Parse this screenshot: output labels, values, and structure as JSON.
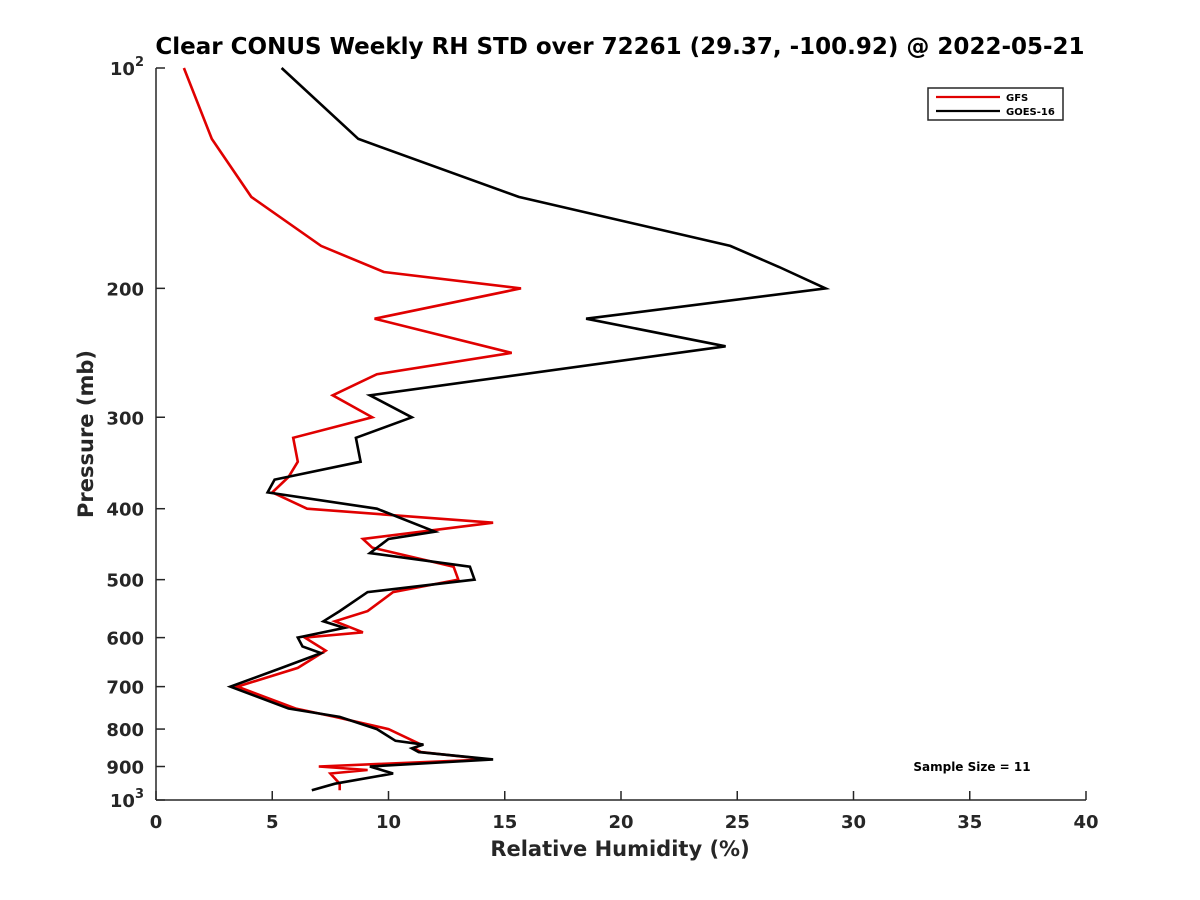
{
  "chart_data": {
    "type": "line",
    "title": "Clear CONUS Weekly RH STD over 72261 (29.37, -100.92) @ 2022-05-21",
    "xlabel": "Relative Humidity (%)",
    "ylabel": "Pressure (mb)",
    "xlim": [
      0,
      40
    ],
    "ylim": [
      1000,
      100
    ],
    "yscale": "log",
    "y_reversed": true,
    "grid": false,
    "x_ticks": [
      {
        "value": 0,
        "label": "0"
      },
      {
        "value": 5,
        "label": "5"
      },
      {
        "value": 10,
        "label": "10"
      },
      {
        "value": 15,
        "label": "15"
      },
      {
        "value": 20,
        "label": "20"
      },
      {
        "value": 25,
        "label": "25"
      },
      {
        "value": 30,
        "label": "30"
      },
      {
        "value": 35,
        "label": "35"
      },
      {
        "value": 40,
        "label": "40"
      }
    ],
    "y_ticks": [
      {
        "value": 100,
        "label": "10",
        "sup": "2"
      },
      {
        "value": 200,
        "label": "200"
      },
      {
        "value": 300,
        "label": "300"
      },
      {
        "value": 400,
        "label": "400"
      },
      {
        "value": 500,
        "label": "500"
      },
      {
        "value": 600,
        "label": "600"
      },
      {
        "value": 700,
        "label": "700"
      },
      {
        "value": 800,
        "label": "800"
      },
      {
        "value": 900,
        "label": "900"
      },
      {
        "value": 1000,
        "label": "10",
        "sup": "3"
      }
    ],
    "legend_position": "top-right",
    "series": [
      {
        "name": "GFS",
        "color": "#e00000",
        "points": [
          [
            1.2,
            100
          ],
          [
            2.4,
            125
          ],
          [
            4.1,
            150
          ],
          [
            7.1,
            175
          ],
          [
            9.8,
            190
          ],
          [
            15.7,
            200
          ],
          [
            9.4,
            220
          ],
          [
            15.3,
            245
          ],
          [
            9.5,
            262
          ],
          [
            7.6,
            280
          ],
          [
            9.3,
            300
          ],
          [
            5.9,
            320
          ],
          [
            6.1,
            345
          ],
          [
            5.7,
            362
          ],
          [
            5.0,
            380
          ],
          [
            6.5,
            400
          ],
          [
            14.5,
            418
          ],
          [
            8.9,
            440
          ],
          [
            9.3,
            452
          ],
          [
            12.8,
            480
          ],
          [
            13.0,
            500
          ],
          [
            10.2,
            520
          ],
          [
            9.1,
            552
          ],
          [
            7.7,
            570
          ],
          [
            8.9,
            590
          ],
          [
            6.4,
            600
          ],
          [
            7.3,
            625
          ],
          [
            6.1,
            660
          ],
          [
            3.5,
            700
          ],
          [
            6.0,
            750
          ],
          [
            7.7,
            770
          ],
          [
            10.0,
            800
          ],
          [
            11.4,
            840
          ],
          [
            11.1,
            850
          ],
          [
            11.4,
            860
          ],
          [
            14.3,
            880
          ],
          [
            7.0,
            900
          ],
          [
            9.1,
            910
          ],
          [
            7.5,
            920
          ],
          [
            7.9,
            950
          ],
          [
            7.9,
            970
          ]
        ]
      },
      {
        "name": "GOES-16",
        "color": "#000000",
        "points": [
          [
            5.4,
            100
          ],
          [
            8.7,
            125
          ],
          [
            15.6,
            150
          ],
          [
            24.7,
            175
          ],
          [
            26.8,
            187
          ],
          [
            28.8,
            200
          ],
          [
            18.5,
            220
          ],
          [
            24.5,
            240
          ],
          [
            9.2,
            280
          ],
          [
            11.0,
            300
          ],
          [
            8.6,
            320
          ],
          [
            8.8,
            345
          ],
          [
            5.1,
            365
          ],
          [
            4.8,
            380
          ],
          [
            9.5,
            400
          ],
          [
            12.0,
            430
          ],
          [
            10.0,
            440
          ],
          [
            9.2,
            460
          ],
          [
            13.5,
            480
          ],
          [
            13.7,
            500
          ],
          [
            9.1,
            520
          ],
          [
            7.9,
            552
          ],
          [
            7.2,
            570
          ],
          [
            8.1,
            582
          ],
          [
            6.1,
            600
          ],
          [
            6.3,
            617
          ],
          [
            7.1,
            630
          ],
          [
            5.4,
            660
          ],
          [
            3.2,
            700
          ],
          [
            5.7,
            750
          ],
          [
            7.9,
            770
          ],
          [
            9.5,
            800
          ],
          [
            10.3,
            830
          ],
          [
            11.5,
            840
          ],
          [
            11.0,
            850
          ],
          [
            11.3,
            860
          ],
          [
            14.5,
            880
          ],
          [
            9.2,
            900
          ],
          [
            10.2,
            920
          ],
          [
            7.7,
            950
          ],
          [
            6.7,
            970
          ]
        ]
      }
    ],
    "annotations": [
      "Sample Size = 11"
    ]
  }
}
